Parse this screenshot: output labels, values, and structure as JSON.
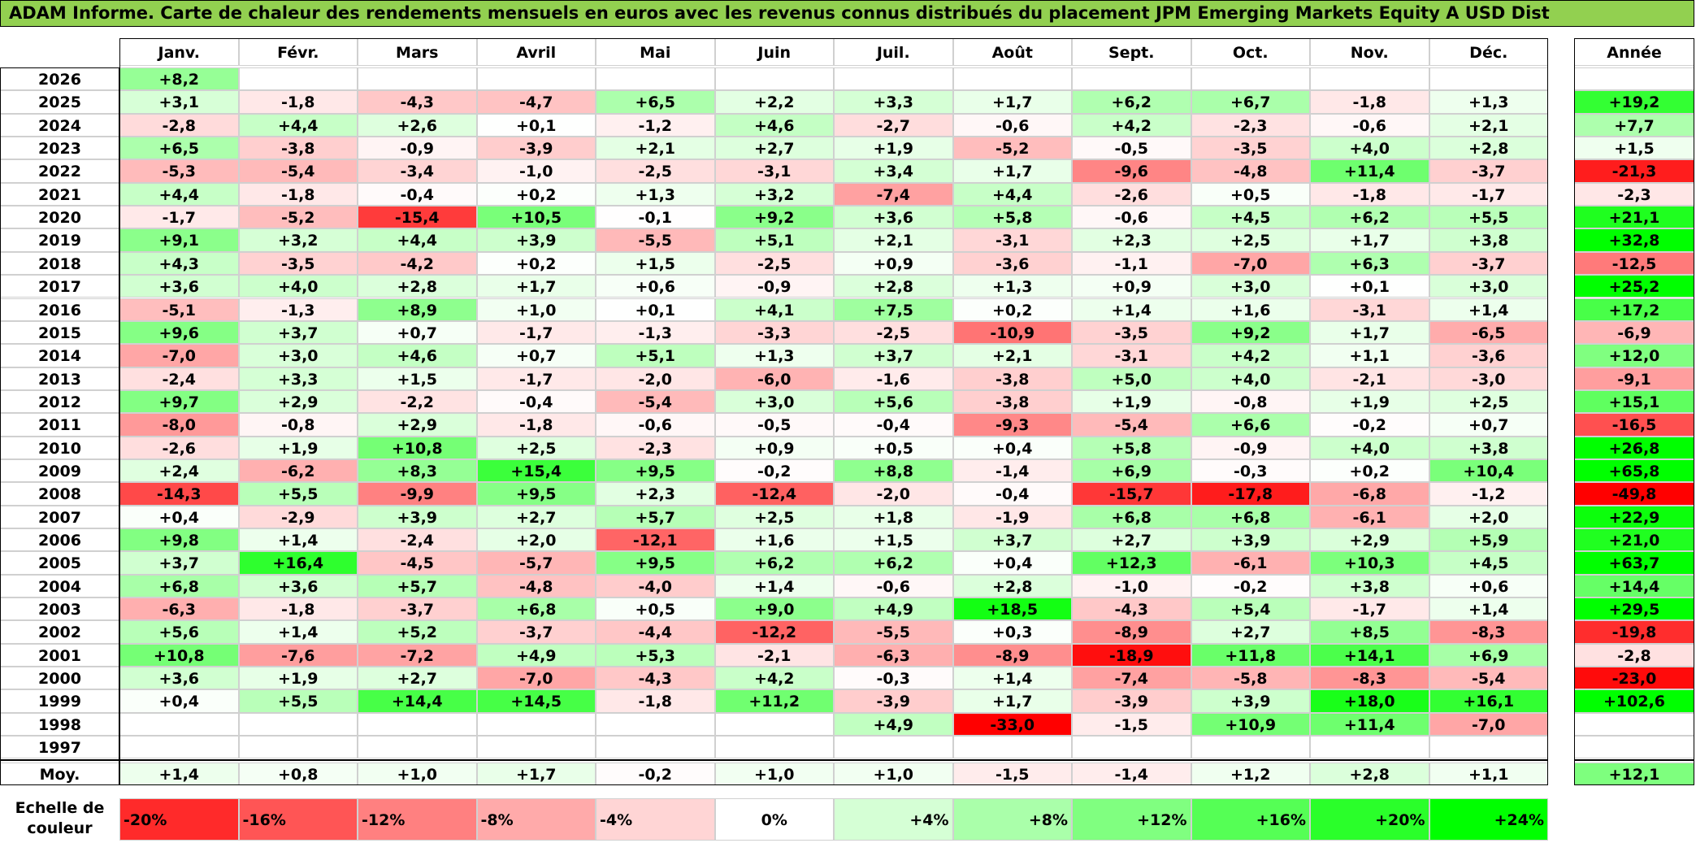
{
  "title": "ADAM Informe. Carte de chaleur des rendements mensuels en euros avec les revenus connus distribués du placement JPM Emerging Markets Equity A USD Dist",
  "months": [
    "Janv.",
    "Févr.",
    "Mars",
    "Avril",
    "Mai",
    "Juin",
    "Juil.",
    "Août",
    "Sept.",
    "Oct.",
    "Nov.",
    "Déc."
  ],
  "year_header": "Année",
  "avg_label": "Moy.",
  "scale_label": "Echelle de couleur",
  "colors": {
    "title_bg": "#92d050",
    "positive_max": "#00ff00",
    "negative_max": "#ff0000",
    "neutral": "#ffffff"
  },
  "chart_data": {
    "type": "heatmap",
    "title": "ADAM Informe. Carte de chaleur des rendements mensuels en euros avec les revenus connus distribués du placement JPM Emerging Markets Equity A USD Dist",
    "columns": [
      "Janv.",
      "Févr.",
      "Mars",
      "Avril",
      "Mai",
      "Juin",
      "Juil.",
      "Août",
      "Sept.",
      "Oct.",
      "Nov.",
      "Déc."
    ],
    "rows": [
      {
        "year": "2026",
        "months": [
          "+8,2",
          "",
          "",
          "",
          "",
          "",
          "",
          "",
          "",
          "",
          "",
          ""
        ],
        "annual": ""
      },
      {
        "year": "2025",
        "months": [
          "+3,1",
          "-1,8",
          "-4,3",
          "-4,7",
          "+6,5",
          "+2,2",
          "+3,3",
          "+1,7",
          "+6,2",
          "+6,7",
          "-1,8",
          "+1,3"
        ],
        "annual": "+19,2"
      },
      {
        "year": "2024",
        "months": [
          "-2,8",
          "+4,4",
          "+2,6",
          "+0,1",
          "-1,2",
          "+4,6",
          "-2,7",
          "-0,6",
          "+4,2",
          "-2,3",
          "-0,6",
          "+2,1"
        ],
        "annual": "+7,7"
      },
      {
        "year": "2023",
        "months": [
          "+6,5",
          "-3,8",
          "-0,9",
          "-3,9",
          "+2,1",
          "+2,7",
          "+1,9",
          "-5,2",
          "-0,5",
          "-3,5",
          "+4,0",
          "+2,8"
        ],
        "annual": "+1,5"
      },
      {
        "year": "2022",
        "months": [
          "-5,3",
          "-5,4",
          "-3,4",
          "-1,0",
          "-2,5",
          "-3,1",
          "+3,4",
          "+1,7",
          "-9,6",
          "-4,8",
          "+11,4",
          "-3,7"
        ],
        "annual": "-21,3"
      },
      {
        "year": "2021",
        "months": [
          "+4,4",
          "-1,8",
          "-0,4",
          "+0,2",
          "+1,3",
          "+3,2",
          "-7,4",
          "+4,4",
          "-2,6",
          "+0,5",
          "-1,8",
          "-1,7"
        ],
        "annual": "-2,3"
      },
      {
        "year": "2020",
        "months": [
          "-1,7",
          "-5,2",
          "-15,4",
          "+10,5",
          "-0,1",
          "+9,2",
          "+3,6",
          "+5,8",
          "-0,6",
          "+4,5",
          "+6,2",
          "+5,5"
        ],
        "annual": "+21,1"
      },
      {
        "year": "2019",
        "months": [
          "+9,1",
          "+3,2",
          "+4,4",
          "+3,9",
          "-5,5",
          "+5,1",
          "+2,1",
          "-3,1",
          "+2,3",
          "+2,5",
          "+1,7",
          "+3,8"
        ],
        "annual": "+32,8"
      },
      {
        "year": "2018",
        "months": [
          "+4,3",
          "-3,5",
          "-4,2",
          "+0,2",
          "+1,5",
          "-2,5",
          "+0,9",
          "-3,6",
          "-1,1",
          "-7,0",
          "+6,3",
          "-3,7"
        ],
        "annual": "-12,5"
      },
      {
        "year": "2017",
        "months": [
          "+3,6",
          "+4,0",
          "+2,8",
          "+1,7",
          "+0,6",
          "-0,9",
          "+2,8",
          "+1,3",
          "+0,9",
          "+3,0",
          "+0,1",
          "+3,0"
        ],
        "annual": "+25,2"
      },
      {
        "year": "2016",
        "months": [
          "-5,1",
          "-1,3",
          "+8,9",
          "+1,0",
          "+0,1",
          "+4,1",
          "+7,5",
          "+0,2",
          "+1,4",
          "+1,6",
          "-3,1",
          "+1,4"
        ],
        "annual": "+17,2"
      },
      {
        "year": "2015",
        "months": [
          "+9,6",
          "+3,7",
          "+0,7",
          "-1,7",
          "-1,3",
          "-3,3",
          "-2,5",
          "-10,9",
          "-3,5",
          "+9,2",
          "+1,7",
          "-6,5"
        ],
        "annual": "-6,9"
      },
      {
        "year": "2014",
        "months": [
          "-7,0",
          "+3,0",
          "+4,6",
          "+0,7",
          "+5,1",
          "+1,3",
          "+3,7",
          "+2,1",
          "-3,1",
          "+4,2",
          "+1,1",
          "-3,6"
        ],
        "annual": "+12,0"
      },
      {
        "year": "2013",
        "months": [
          "-2,4",
          "+3,3",
          "+1,5",
          "-1,7",
          "-2,0",
          "-6,0",
          "-1,6",
          "-3,8",
          "+5,0",
          "+4,0",
          "-2,1",
          "-3,0"
        ],
        "annual": "-9,1"
      },
      {
        "year": "2012",
        "months": [
          "+9,7",
          "+2,9",
          "-2,2",
          "-0,4",
          "-5,4",
          "+3,0",
          "+5,6",
          "-3,8",
          "+1,9",
          "-0,8",
          "+1,9",
          "+2,5"
        ],
        "annual": "+15,1"
      },
      {
        "year": "2011",
        "months": [
          "-8,0",
          "-0,8",
          "+2,9",
          "-1,8",
          "-0,6",
          "-0,5",
          "-0,4",
          "-9,3",
          "-5,4",
          "+6,6",
          "-0,2",
          "+0,7"
        ],
        "annual": "-16,5"
      },
      {
        "year": "2010",
        "months": [
          "-2,6",
          "+1,9",
          "+10,8",
          "+2,5",
          "-2,3",
          "+0,9",
          "+0,5",
          "+0,4",
          "+5,8",
          "-0,9",
          "+4,0",
          "+3,8"
        ],
        "annual": "+26,8"
      },
      {
        "year": "2009",
        "months": [
          "+2,4",
          "-6,2",
          "+8,3",
          "+15,4",
          "+9,5",
          "-0,2",
          "+8,8",
          "-1,4",
          "+6,9",
          "-0,3",
          "+0,2",
          "+10,4"
        ],
        "annual": "+65,8"
      },
      {
        "year": "2008",
        "months": [
          "-14,3",
          "+5,5",
          "-9,9",
          "+9,5",
          "+2,3",
          "-12,4",
          "-2,0",
          "-0,4",
          "-15,7",
          "-17,8",
          "-6,8",
          "-1,2"
        ],
        "annual": "-49,8"
      },
      {
        "year": "2007",
        "months": [
          "+0,4",
          "-2,9",
          "+3,9",
          "+2,7",
          "+5,7",
          "+2,5",
          "+1,8",
          "-1,9",
          "+6,8",
          "+6,8",
          "-6,1",
          "+2,0"
        ],
        "annual": "+22,9"
      },
      {
        "year": "2006",
        "months": [
          "+9,8",
          "+1,4",
          "-2,4",
          "+2,0",
          "-12,1",
          "+1,6",
          "+1,5",
          "+3,7",
          "+2,7",
          "+3,9",
          "+2,9",
          "+5,9"
        ],
        "annual": "+21,0"
      },
      {
        "year": "2005",
        "months": [
          "+3,7",
          "+16,4",
          "-4,5",
          "-5,7",
          "+9,5",
          "+6,2",
          "+6,2",
          "+0,4",
          "+12,3",
          "-6,1",
          "+10,3",
          "+4,5"
        ],
        "annual": "+63,7"
      },
      {
        "year": "2004",
        "months": [
          "+6,8",
          "+3,6",
          "+5,7",
          "-4,8",
          "-4,0",
          "+1,4",
          "-0,6",
          "+2,8",
          "-1,0",
          "-0,2",
          "+3,8",
          "+0,6"
        ],
        "annual": "+14,4"
      },
      {
        "year": "2003",
        "months": [
          "-6,3",
          "-1,8",
          "-3,7",
          "+6,8",
          "+0,5",
          "+9,0",
          "+4,9",
          "+18,5",
          "-4,3",
          "+5,4",
          "-1,7",
          "+1,4"
        ],
        "annual": "+29,5"
      },
      {
        "year": "2002",
        "months": [
          "+5,6",
          "+1,4",
          "+5,2",
          "-3,7",
          "-4,4",
          "-12,2",
          "-5,5",
          "+0,3",
          "-8,9",
          "+2,7",
          "+8,5",
          "-8,3"
        ],
        "annual": "-19,8"
      },
      {
        "year": "2001",
        "months": [
          "+10,8",
          "-7,6",
          "-7,2",
          "+4,9",
          "+5,3",
          "-2,1",
          "-6,3",
          "-8,9",
          "-18,9",
          "+11,8",
          "+14,1",
          "+6,9"
        ],
        "annual": "-2,8"
      },
      {
        "year": "2000",
        "months": [
          "+3,6",
          "+1,9",
          "+2,7",
          "-7,0",
          "-4,3",
          "+4,2",
          "-0,3",
          "+1,4",
          "-7,4",
          "-5,8",
          "-8,3",
          "-5,4"
        ],
        "annual": "-23,0"
      },
      {
        "year": "1999",
        "months": [
          "+0,4",
          "+5,5",
          "+14,4",
          "+14,5",
          "-1,8",
          "+11,2",
          "-3,9",
          "+1,7",
          "-3,9",
          "+3,9",
          "+18,0",
          "+16,1"
        ],
        "annual": "+102,6"
      },
      {
        "year": "1998",
        "months": [
          "",
          "",
          "",
          "",
          "",
          "",
          "+4,9",
          "-33,0",
          "-1,5",
          "+10,9",
          "+11,4",
          "-7,0"
        ],
        "annual": ""
      },
      {
        "year": "1997",
        "months": [
          "",
          "",
          "",
          "",
          "",
          "",
          "",
          "",
          "",
          "",
          "",
          ""
        ],
        "annual": ""
      }
    ],
    "average": {
      "months": [
        "+1,4",
        "+0,8",
        "+1,0",
        "+1,7",
        "-0,2",
        "+1,0",
        "+1,0",
        "-1,5",
        "-1,4",
        "+1,2",
        "+2,8",
        "+1,1"
      ],
      "annual": "+12,1"
    },
    "scale": [
      "-20%",
      "-16%",
      "-12%",
      "-8%",
      "-4%",
      "0%",
      "+4%",
      "+8%",
      "+12%",
      "+16%",
      "+20%",
      "+24%"
    ]
  }
}
